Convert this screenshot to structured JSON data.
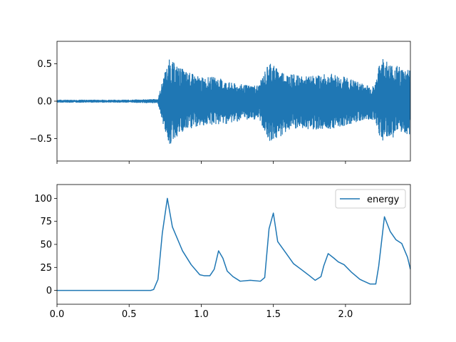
{
  "chart_data": [
    {
      "type": "line",
      "title": "",
      "xlabel": "",
      "ylabel": "",
      "xlim": [
        0,
        2.45
      ],
      "ylim": [
        -0.8,
        0.8
      ],
      "x_ticks": [
        0.0,
        0.5,
        1.0,
        1.5,
        2.0
      ],
      "x_tick_labels_shown": false,
      "y_ticks": [
        -0.5,
        0.0,
        0.5
      ],
      "y_tick_labels": [
        "−0.5",
        "0.0",
        "0.5"
      ],
      "grid": false,
      "color": "#1f77b4",
      "series": [
        {
          "kind": "waveform",
          "envelope": {
            "x": [
              0.0,
              0.5,
              0.7,
              0.74,
              0.78,
              0.82,
              0.9,
              1.0,
              1.1,
              1.2,
              1.3,
              1.4,
              1.45,
              1.48,
              1.52,
              1.6,
              1.7,
              1.8,
              1.9,
              2.0,
              2.1,
              2.2,
              2.25,
              2.3,
              2.4,
              2.45
            ],
            "upper": [
              0.02,
              0.02,
              0.03,
              0.35,
              0.57,
              0.5,
              0.4,
              0.32,
              0.33,
              0.25,
              0.22,
              0.22,
              0.45,
              0.56,
              0.45,
              0.38,
              0.33,
              0.35,
              0.37,
              0.33,
              0.25,
              0.2,
              0.62,
              0.52,
              0.45,
              0.45
            ],
            "lower": [
              -0.02,
              -0.02,
              -0.03,
              -0.35,
              -0.6,
              -0.5,
              -0.4,
              -0.33,
              -0.32,
              -0.3,
              -0.25,
              -0.25,
              -0.45,
              -0.55,
              -0.52,
              -0.4,
              -0.38,
              -0.38,
              -0.37,
              -0.33,
              -0.27,
              -0.25,
              -0.55,
              -0.5,
              -0.45,
              -0.45
            ]
          }
        }
      ]
    },
    {
      "type": "line",
      "title": "",
      "xlabel": "",
      "ylabel": "",
      "xlim": [
        0,
        2.45
      ],
      "ylim": [
        -15,
        115
      ],
      "x_ticks": [
        0.0,
        0.5,
        1.0,
        1.5,
        2.0
      ],
      "x_tick_labels": [
        "0.0",
        "0.5",
        "1.0",
        "1.5",
        "2.0"
      ],
      "y_ticks": [
        0,
        25,
        50,
        75,
        100
      ],
      "y_tick_labels": [
        "0",
        "25",
        "50",
        "75",
        "100"
      ],
      "grid": false,
      "legend_position": "top-right",
      "series": [
        {
          "name": "energy",
          "color": "#1f77b4",
          "x": [
            0.0,
            0.1,
            0.2,
            0.3,
            0.4,
            0.5,
            0.6,
            0.65,
            0.67,
            0.7,
            0.73,
            0.765,
            0.8,
            0.87,
            0.93,
            0.99,
            1.02,
            1.06,
            1.09,
            1.12,
            1.15,
            1.18,
            1.22,
            1.27,
            1.34,
            1.41,
            1.44,
            1.47,
            1.5,
            1.53,
            1.59,
            1.64,
            1.7,
            1.75,
            1.79,
            1.83,
            1.85,
            1.88,
            1.92,
            1.95,
            1.99,
            2.04,
            2.1,
            2.17,
            2.21,
            2.23,
            2.27,
            2.31,
            2.35,
            2.39,
            2.43,
            2.45
          ],
          "values": [
            0,
            0,
            0,
            0,
            0,
            0,
            0,
            0,
            1,
            12,
            62,
            100,
            69,
            43,
            28,
            17,
            16,
            16,
            23,
            43,
            35,
            21,
            15,
            10,
            11,
            10,
            14,
            67,
            84,
            53,
            40,
            29,
            22,
            16,
            11,
            15,
            27,
            40,
            35,
            31,
            28,
            20,
            12,
            7,
            7,
            26,
            80,
            64,
            55,
            51,
            36,
            23
          ]
        }
      ]
    }
  ]
}
